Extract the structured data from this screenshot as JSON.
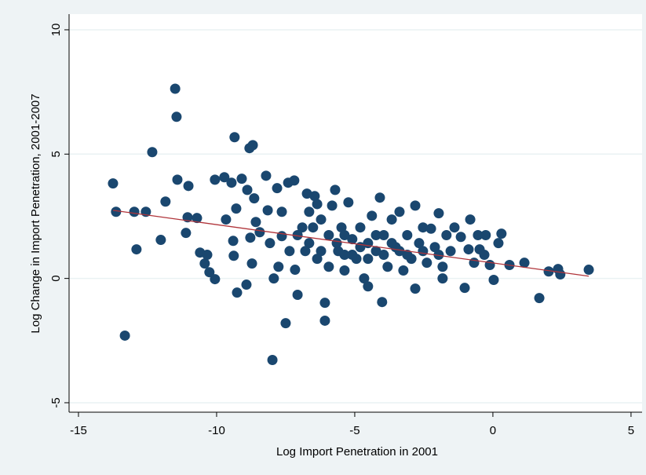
{
  "chart_data": {
    "type": "scatter",
    "xlabel": "Log Import Penetration in 2001",
    "ylabel": "Log Change in Import Penetration, 2001-2007",
    "xlim": [
      -15.34,
      5.4
    ],
    "ylim": [
      -5.38,
      10.63
    ],
    "xticks": [
      -15,
      -10,
      -5,
      0,
      5
    ],
    "yticks": [
      -5,
      0,
      5,
      10
    ],
    "grid": true,
    "points": {
      "color": "#1a476f",
      "x": [
        -13.75,
        -13.64,
        -13.32,
        -12.98,
        -12.9,
        -12.56,
        -12.33,
        -12.02,
        -11.85,
        -11.5,
        -11.45,
        -11.42,
        -11.11,
        -11.02,
        -11.05,
        -10.71,
        -10.6,
        -10.43,
        -10.34,
        -10.26,
        -10.06,
        -10.06,
        -9.72,
        -9.66,
        -9.46,
        -9.35,
        -9.29,
        -9.26,
        -9.4,
        -9.38,
        -9.09,
        -8.92,
        -8.81,
        -8.69,
        -8.89,
        -8.78,
        -8.64,
        -8.58,
        -8.72,
        -8.44,
        -8.21,
        -8.15,
        -7.98,
        -7.93,
        -7.81,
        -7.76,
        -7.64,
        -7.5,
        -7.41,
        -7.19,
        -7.07,
        -7.16,
        -6.9,
        -6.73,
        -6.65,
        -6.45,
        -6.36,
        -6.22,
        -6.08,
        -6.08,
        -5.94,
        -5.82,
        -5.71,
        -5.6,
        -5.48,
        -5.37,
        -5.23,
        -5.09,
        -4.94,
        -4.8,
        -4.66,
        -4.52,
        -4.38,
        -4.23,
        -4.09,
        -4.01,
        -3.95,
        -3.81,
        -3.66,
        -3.52,
        -3.38,
        -3.24,
        -3.1,
        -2.95,
        -2.81,
        -2.81,
        -2.67,
        -2.53,
        -2.39,
        -2.24,
        -2.1,
        -1.96,
        -1.82,
        -1.68,
        -1.53,
        -1.39,
        -1.16,
        -1.02,
        -0.88,
        -0.68,
        -0.48,
        -0.31,
        -0.11,
        0.03,
        0.2,
        0.31,
        0.6,
        1.14,
        1.68,
        2.02,
        2.36,
        2.44,
        3.47,
        -7.36,
        -7.07,
        -6.79,
        -6.51,
        -6.22,
        -5.94,
        -5.65,
        -5.37,
        -5.09,
        -4.8,
        -4.52,
        -4.23,
        -3.95,
        -3.66,
        -3.38,
        -3.1,
        -2.53,
        -1.96,
        -1.82,
        -4.52,
        -5.37,
        -6.65,
        -6.36,
        -7.64,
        -8.07,
        -0.26,
        -0.82,
        -0.54
      ],
      "values": [
        3.82,
        2.68,
        -2.3,
        2.68,
        1.17,
        2.68,
        5.08,
        1.55,
        3.09,
        7.63,
        6.5,
        3.97,
        1.83,
        3.72,
        2.46,
        2.43,
        1.04,
        0.6,
        0.95,
        0.25,
        -0.03,
        3.97,
        4.07,
        2.37,
        3.85,
        5.68,
        2.81,
        -0.57,
        1.51,
        0.91,
        4.01,
        -0.25,
        5.24,
        5.36,
        3.56,
        1.64,
        3.22,
        2.27,
        0.6,
        1.86,
        4.13,
        2.74,
        -3.28,
        0.0,
        3.63,
        0.47,
        1.7,
        -1.8,
        3.85,
        3.94,
        -0.66,
        0.35,
        2.05,
        3.41,
        1.42,
        3.31,
        0.79,
        2.37,
        -0.98,
        -1.7,
        1.74,
        2.93,
        3.56,
        1.1,
        2.05,
        0.32,
        3.06,
        1.58,
        0.79,
        2.05,
        0.0,
        1.42,
        2.52,
        1.1,
        3.25,
        -0.95,
        1.74,
        0.47,
        2.37,
        1.26,
        2.68,
        0.32,
        1.74,
        0.79,
        2.93,
        -0.41,
        1.42,
        2.05,
        0.63,
        2.0,
        1.26,
        2.62,
        0.47,
        1.74,
        1.1,
        2.05,
        1.67,
        -0.38,
        1.17,
        0.63,
        1.17,
        0.95,
        0.54,
        -0.06,
        1.42,
        1.8,
        0.54,
        0.63,
        -0.79,
        0.28,
        0.38,
        0.16,
        0.35,
        1.1,
        1.74,
        1.1,
        2.05,
        1.1,
        0.47,
        1.42,
        1.74,
        0.95,
        1.26,
        0.79,
        1.74,
        0.95,
        1.42,
        1.1,
        0.95,
        1.1,
        0.95,
        0.0,
        -0.32,
        0.95,
        2.68,
        2.99,
        2.68,
        1.42,
        1.74,
        2.37,
        1.74
      ]
    },
    "fit_line": {
      "color": "#b0343a",
      "x": [
        -13.75,
        3.47
      ],
      "values": [
        2.74,
        0.09
      ]
    }
  }
}
